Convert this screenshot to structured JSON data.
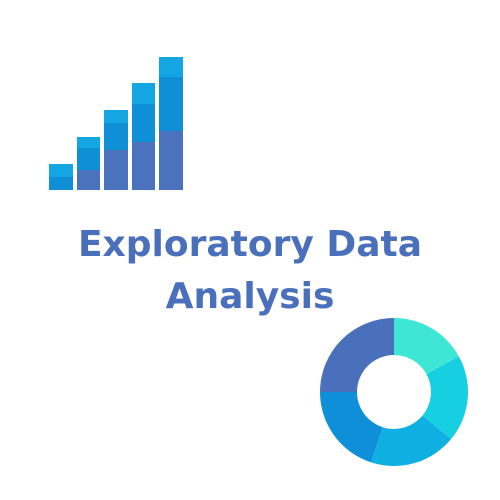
{
  "title": {
    "line1": "Exploratory Data",
    "line2": "Analysis"
  },
  "bar_icon": {
    "columns": [
      {
        "segments": [
          {
            "color": "#0f8fd6"
          },
          {
            "color": "#13a6e3"
          }
        ]
      },
      {
        "segments": [
          {
            "color": "#4a72bd"
          },
          {
            "color": "#0f8fd6"
          },
          {
            "color": "#13a6e3"
          }
        ]
      },
      {
        "segments": [
          {
            "color": "#4a72bd"
          },
          {
            "color": "#0f8fd6"
          },
          {
            "color": "#13a6e3"
          }
        ]
      },
      {
        "segments": [
          {
            "color": "#4a72bd"
          },
          {
            "color": "#0f8fd6"
          },
          {
            "color": "#13a6e3"
          }
        ]
      },
      {
        "segments": [
          {
            "color": "#4a72bd"
          },
          {
            "color": "#0f8fd6"
          },
          {
            "color": "#13a6e3"
          }
        ]
      }
    ]
  },
  "donut_icon": {
    "segments": [
      {
        "color": "#3ee6d6",
        "fraction": 0.17
      },
      {
        "color": "#16cfe1",
        "fraction": 0.19
      },
      {
        "color": "#0db0e0",
        "fraction": 0.19
      },
      {
        "color": "#0e8fd8",
        "fraction": 0.2
      },
      {
        "color": "#4a6fbb",
        "fraction": 0.25
      }
    ]
  }
}
